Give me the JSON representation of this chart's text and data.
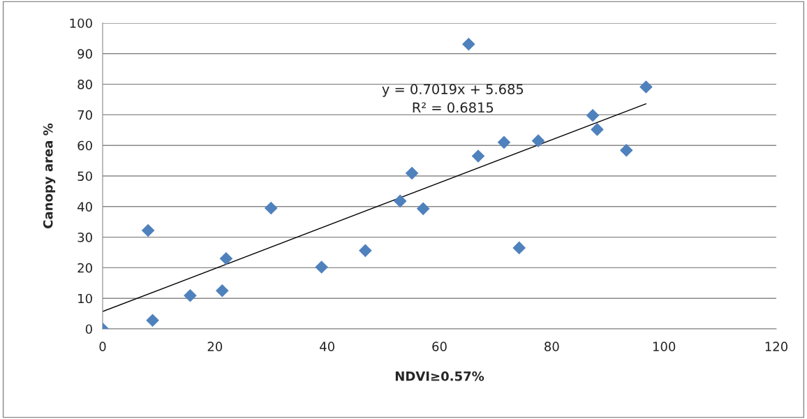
{
  "chart_data": {
    "type": "scatter",
    "xlabel": "NDVI≥0.57%",
    "ylabel": "Canopy area %",
    "series": [
      {
        "color": "#4f81bd",
        "marker": "diamond",
        "x": [
          0,
          8.1,
          8.9,
          15.6,
          21.3,
          22.0,
          30.0,
          39.0,
          46.8,
          53.0,
          55.1,
          57.1,
          65.2,
          66.9,
          71.5,
          74.2,
          77.6,
          87.3,
          88.1,
          93.3,
          96.8
        ],
        "values": [
          0,
          32.2,
          2.8,
          10.9,
          12.5,
          23.0,
          39.5,
          20.2,
          25.6,
          41.8,
          50.9,
          39.3,
          93.1,
          56.5,
          61.0,
          26.5,
          61.5,
          69.8,
          65.2,
          58.4,
          79.1
        ]
      },
      {
        "type": "line",
        "color": "#000000",
        "marker": "none",
        "x": [
          0,
          96.8
        ],
        "values": [
          5.7,
          73.6
        ]
      }
    ],
    "annotations": [
      "y = 0.7019x + 5.685",
      "R² = 0.6815"
    ],
    "xlim": [
      0,
      120
    ],
    "xticks": [
      0,
      20,
      40,
      60,
      80,
      100,
      120
    ],
    "ylim": [
      0,
      100
    ],
    "yticks": [
      0,
      10,
      20,
      30,
      40,
      50,
      60,
      70,
      80,
      90,
      100
    ],
    "grid": "y",
    "legend": false
  }
}
